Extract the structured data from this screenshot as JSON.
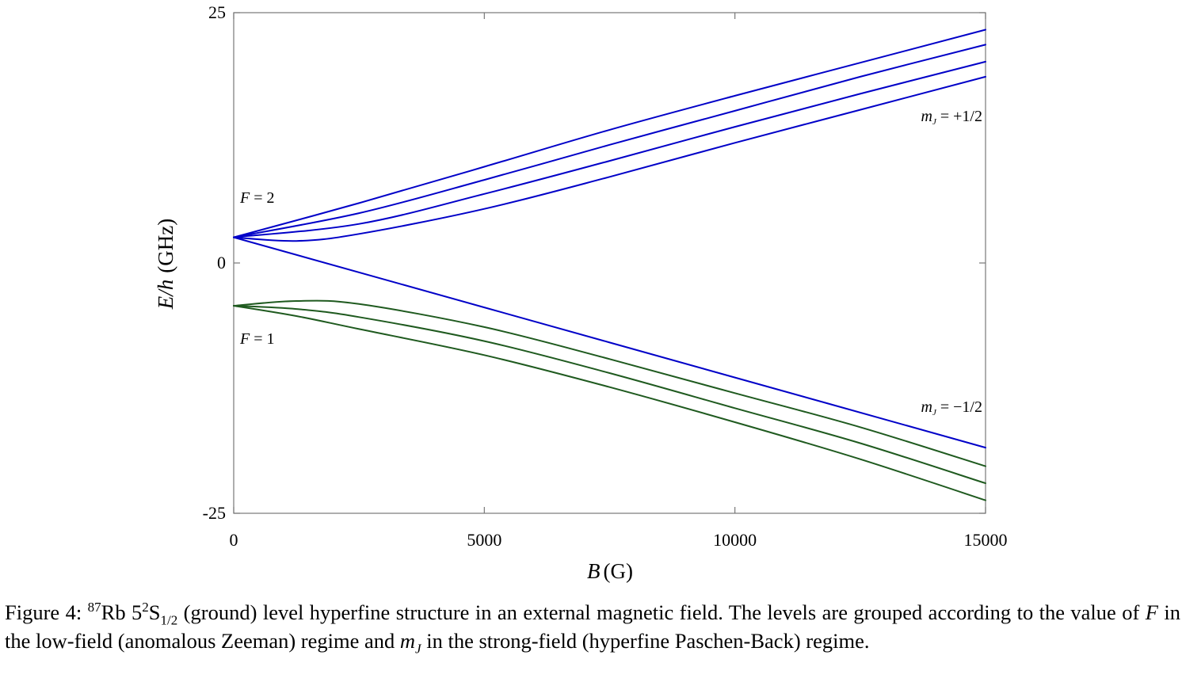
{
  "chart_data": {
    "type": "line",
    "xlabel_var": "B",
    "xlabel_unit": "(G)",
    "ylabel_var": "E/h",
    "ylabel_unit": "(GHz)",
    "xlim": [
      0,
      15000
    ],
    "ylim": [
      -25,
      25
    ],
    "x_ticks": [
      {
        "value": 0,
        "label": "0"
      },
      {
        "value": 5000,
        "label": "5000"
      },
      {
        "value": 10000,
        "label": "10000"
      },
      {
        "value": 15000,
        "label": "15000"
      }
    ],
    "y_ticks": [
      {
        "value": 25,
        "label": "25"
      },
      {
        "value": 0,
        "label": "0"
      },
      {
        "value": -25,
        "label": "-25"
      }
    ],
    "grid": false,
    "colors": {
      "F2": "#0000c8",
      "F1": "#1f5a1f"
    },
    "series": [
      {
        "group": "F2",
        "x": [
          0,
          2500,
          5000,
          7500,
          10000,
          12500,
          15000
        ],
        "y": [
          2.56,
          5.98,
          9.61,
          13.3,
          16.7,
          20.0,
          23.3
        ]
      },
      {
        "group": "F2",
        "x": [
          0,
          2500,
          5000,
          7500,
          10000,
          12500,
          15000
        ],
        "y": [
          2.56,
          4.98,
          8.3,
          11.8,
          15.2,
          18.6,
          21.8
        ]
      },
      {
        "group": "F2",
        "x": [
          0,
          2500,
          5000,
          7500,
          10000,
          12500,
          15000
        ],
        "y": [
          2.56,
          3.9,
          6.9,
          10.2,
          13.6,
          16.9,
          20.1
        ]
      },
      {
        "group": "F2",
        "x": [
          0,
          1250,
          2500,
          5000,
          7500,
          10000,
          12500,
          15000
        ],
        "y": [
          2.56,
          2.2,
          2.9,
          5.4,
          8.6,
          12.0,
          15.3,
          18.6
        ]
      },
      {
        "group": "F2",
        "x": [
          0,
          5000,
          10000,
          15000
        ],
        "y": [
          2.56,
          -4.44,
          -11.44,
          -18.44
        ]
      },
      {
        "group": "F1",
        "x": [
          0,
          1250,
          2500,
          5000,
          7500,
          10000,
          12500,
          15000
        ],
        "y": [
          -4.27,
          -3.8,
          -4.1,
          -6.4,
          -9.6,
          -13.0,
          -16.4,
          -20.3
        ]
      },
      {
        "group": "F1",
        "x": [
          0,
          1250,
          2500,
          5000,
          7500,
          10000,
          12500,
          15000
        ],
        "y": [
          -4.27,
          -4.6,
          -5.4,
          -7.8,
          -11.0,
          -14.5,
          -18.0,
          -22.0
        ]
      },
      {
        "group": "F1",
        "x": [
          0,
          1250,
          2500,
          5000,
          7500,
          10000,
          12500,
          15000
        ],
        "y": [
          -4.27,
          -5.3,
          -6.6,
          -9.2,
          -12.4,
          -15.9,
          -19.6,
          -23.7
        ]
      }
    ],
    "annotations": [
      {
        "var": "F",
        "rest": " = 2"
      },
      {
        "var": "F",
        "rest": " = 1"
      },
      {
        "var": "m",
        "sub": "J",
        "rest": " = +1/2"
      },
      {
        "var": "m",
        "sub": "J",
        "rest": " = −1/2"
      }
    ]
  },
  "caption": {
    "prefix": "Figure 4: ",
    "isotope_mass": "87",
    "element": "Rb 5",
    "term_sup": "2",
    "term_letter": "S",
    "term_sub": "1/2",
    "part1": " (ground) level hyperfine structure in an external magnetic field.  The levels are grouped according to the value of ",
    "var_F": "F",
    "part2": " in the low-field (anomalous Zeeman) regime and ",
    "var_m": "m",
    "var_m_sub": "J",
    "part3": " in the strong-field (hyperfine Paschen-Back) regime."
  }
}
